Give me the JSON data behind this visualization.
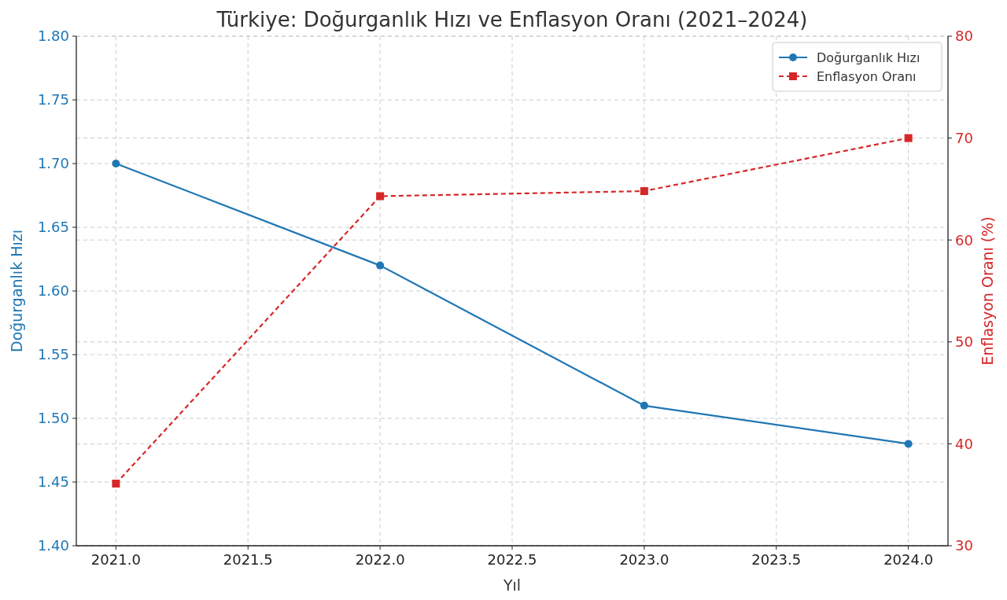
{
  "chart_data": {
    "type": "line",
    "title": "Türkiye: Doğurganlık Hızı ve Enflasyon Oranı (2021–2024)",
    "xlabel": "Yıl",
    "ylabel": "Doğurganlık Hızı",
    "y2label": "Enflasyon Oranı (%)",
    "x": [
      2021,
      2022,
      2023,
      2024
    ],
    "series": [
      {
        "name": "Doğurganlık Hızı",
        "color": "#1f77b4",
        "values": [
          1.7,
          1.62,
          1.51,
          1.48
        ],
        "marker": "circle",
        "line_style": "solid"
      },
      {
        "name": "Enflasyon Oranı",
        "color": "#d62728",
        "values": [
          36.1,
          64.3,
          64.8,
          70.0
        ],
        "axis": "y2",
        "marker": "square",
        "line_style": "dashed"
      }
    ],
    "xlim": [
      2020.85,
      2024.15
    ],
    "xticks": [
      {
        "value": 2021,
        "label": "2021.0"
      },
      {
        "value": 2021.5,
        "label": "2021.5"
      },
      {
        "value": 2022,
        "label": "2022.0"
      },
      {
        "value": 2022.5,
        "label": "2022.5"
      },
      {
        "value": 2023,
        "label": "2023.0"
      },
      {
        "value": 2023.5,
        "label": "2023.5"
      },
      {
        "value": 2024,
        "label": "2024.0"
      }
    ],
    "ylim": [
      1.4,
      1.8
    ],
    "yticks": [
      {
        "value": 1.4,
        "label": "1.40"
      },
      {
        "value": 1.45,
        "label": "1.45"
      },
      {
        "value": 1.5,
        "label": "1.50"
      },
      {
        "value": 1.55,
        "label": "1.55"
      },
      {
        "value": 1.6,
        "label": "1.60"
      },
      {
        "value": 1.65,
        "label": "1.65"
      },
      {
        "value": 1.7,
        "label": "1.70"
      },
      {
        "value": 1.75,
        "label": "1.75"
      },
      {
        "value": 1.8,
        "label": "1.80"
      }
    ],
    "y2lim": [
      30,
      80
    ],
    "y2ticks": [
      30,
      40,
      50,
      60,
      70,
      80
    ],
    "grid": true,
    "legend": "top right"
  }
}
